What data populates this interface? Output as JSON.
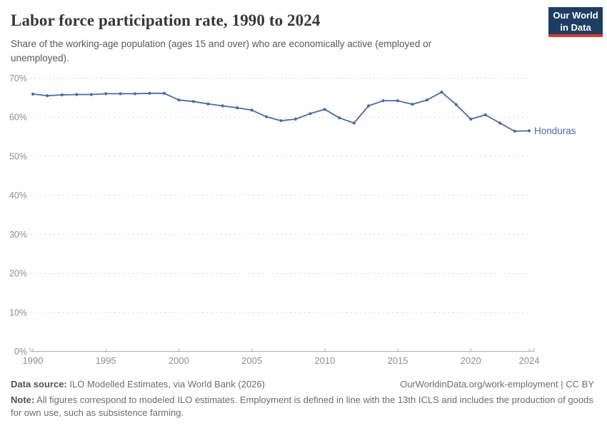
{
  "header": {
    "title": "Labor force participation rate, 1990 to 2024",
    "subtitle_line1": "Share of the working-age population (ages 15 and over) who are economically active (employed or",
    "subtitle_line2": "unemployed)."
  },
  "logo": {
    "line1": "Our World",
    "line2": "in Data",
    "bg_color": "#1d3d63",
    "accent_color": "#d73c32"
  },
  "chart_data": {
    "type": "line",
    "title": "Labor force participation rate, 1990 to 2024",
    "xlabel": "",
    "ylabel": "",
    "ylim": [
      0,
      70
    ],
    "y_ticks": [
      0,
      10,
      20,
      30,
      40,
      50,
      60,
      70
    ],
    "y_tick_suffix": "%",
    "x_ticks": [
      1990,
      1995,
      2000,
      2005,
      2010,
      2015,
      2020,
      2024
    ],
    "grid": "dashed-horizontal",
    "legend_position": "end-of-line-label",
    "x": [
      1990,
      1991,
      1992,
      1993,
      1994,
      1995,
      1996,
      1997,
      1998,
      1999,
      2000,
      2001,
      2002,
      2003,
      2004,
      2005,
      2006,
      2007,
      2008,
      2009,
      2010,
      2011,
      2012,
      2013,
      2014,
      2015,
      2016,
      2017,
      2018,
      2019,
      2020,
      2021,
      2022,
      2023,
      2024
    ],
    "series": [
      {
        "name": "Honduras",
        "color": "#4b6aa4",
        "values": [
          65.9,
          65.5,
          65.7,
          65.8,
          65.8,
          66.0,
          66.0,
          66.0,
          66.1,
          66.1,
          64.4,
          64.0,
          63.4,
          62.9,
          62.4,
          61.8,
          60.1,
          59.1,
          59.5,
          60.9,
          62.0,
          59.8,
          58.5,
          62.9,
          64.2,
          64.2,
          63.3,
          64.4,
          66.4,
          63.2,
          59.5,
          60.6,
          58.5,
          56.4,
          56.5
        ]
      }
    ],
    "style": {
      "grid_color": "#dddddd",
      "axis_color": "#a9a9a9",
      "tick_label_color": "#8e8e8e"
    }
  },
  "footer": {
    "datasource_label": "Data source:",
    "datasource_value": "ILO Modelled Estimates, via World Bank (2026)",
    "credit_url": "OurWorldinData.org/work-employment",
    "credit_separator": " | ",
    "license": "CC BY",
    "note_label": "Note:",
    "note_line1": "All figures correspond to modeled ILO estimates. Employment is defined in line with the 13th ICLS and includes the production of goods",
    "note_line2": "for own use, such as subsistence farming."
  }
}
